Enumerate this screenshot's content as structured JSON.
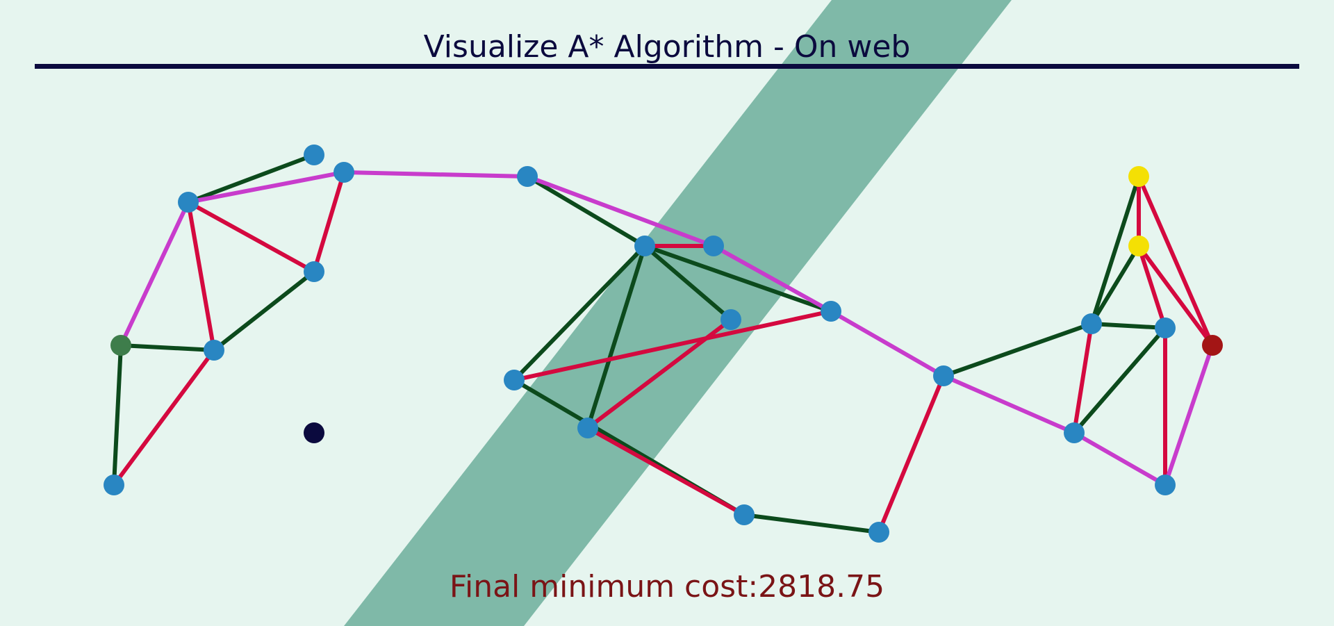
{
  "header": {
    "title": "Visualize A* Algorithm - On web"
  },
  "result": {
    "text": "Final minimum cost:2818.75"
  },
  "colors": {
    "background": "#e6f5ef",
    "obstacle": "#7fb9a8",
    "title": "#0b0a3e",
    "result_text": "#7a1416",
    "node_default": "#2986c2",
    "node_start": "#3e7d4b",
    "node_goal": "#a31515",
    "node_frontier": "#f4e004",
    "node_marker": "#0b0a3e",
    "edge_explored": "#0c4a1c",
    "edge_considered": "#d4093f",
    "edge_path": "#c83ccc"
  },
  "graph": {
    "nodes": [
      {
        "id": "n1",
        "state": "default"
      },
      {
        "id": "n2",
        "state": "default"
      },
      {
        "id": "n3",
        "state": "default"
      },
      {
        "id": "n4",
        "state": "default"
      },
      {
        "id": "n5",
        "state": "start"
      },
      {
        "id": "n6",
        "state": "default"
      },
      {
        "id": "n7",
        "state": "default"
      },
      {
        "id": "n8",
        "state": "default"
      },
      {
        "id": "n9",
        "state": "default"
      },
      {
        "id": "n10",
        "state": "default"
      },
      {
        "id": "n11",
        "state": "default"
      },
      {
        "id": "n12",
        "state": "default"
      },
      {
        "id": "n13",
        "state": "default"
      },
      {
        "id": "n14",
        "state": "default"
      },
      {
        "id": "n15",
        "state": "default"
      },
      {
        "id": "n16",
        "state": "default"
      },
      {
        "id": "n17",
        "state": "default"
      },
      {
        "id": "n18",
        "state": "frontier"
      },
      {
        "id": "n19",
        "state": "frontier"
      },
      {
        "id": "n20",
        "state": "default"
      },
      {
        "id": "n21",
        "state": "default"
      },
      {
        "id": "n22",
        "state": "goal"
      },
      {
        "id": "n23",
        "state": "default"
      },
      {
        "id": "n24",
        "state": "default"
      },
      {
        "id": "n25",
        "state": "marker"
      }
    ],
    "edges": [
      {
        "from": "n2",
        "to": "n1",
        "state": "explored"
      },
      {
        "from": "n2",
        "to": "n3",
        "state": "path"
      },
      {
        "from": "n2",
        "to": "n4",
        "state": "considered"
      },
      {
        "from": "n2",
        "to": "n6",
        "state": "considered"
      },
      {
        "from": "n2",
        "to": "n5",
        "state": "path"
      },
      {
        "from": "n3",
        "to": "n4",
        "state": "considered"
      },
      {
        "from": "n3",
        "to": "n8",
        "state": "path"
      },
      {
        "from": "n4",
        "to": "n6",
        "state": "explored"
      },
      {
        "from": "n5",
        "to": "n6",
        "state": "explored"
      },
      {
        "from": "n5",
        "to": "n7",
        "state": "explored"
      },
      {
        "from": "n6",
        "to": "n7",
        "state": "considered"
      },
      {
        "from": "n8",
        "to": "n9",
        "state": "explored"
      },
      {
        "from": "n8",
        "to": "n10",
        "state": "path"
      },
      {
        "from": "n9",
        "to": "n10",
        "state": "considered"
      },
      {
        "from": "n9",
        "to": "n11",
        "state": "explored"
      },
      {
        "from": "n9",
        "to": "n12",
        "state": "explored"
      },
      {
        "from": "n9",
        "to": "n13",
        "state": "explored"
      },
      {
        "from": "n9",
        "to": "n14",
        "state": "explored"
      },
      {
        "from": "n10",
        "to": "n12",
        "state": "path"
      },
      {
        "from": "n11",
        "to": "n12",
        "state": "considered"
      },
      {
        "from": "n11",
        "to": "n15",
        "state": "explored"
      },
      {
        "from": "n13",
        "to": "n14",
        "state": "considered"
      },
      {
        "from": "n14",
        "to": "n15",
        "state": "considered"
      },
      {
        "from": "n15",
        "to": "n16",
        "state": "explored"
      },
      {
        "from": "n16",
        "to": "n17",
        "state": "considered"
      },
      {
        "from": "n12",
        "to": "n17",
        "state": "path"
      },
      {
        "from": "n17",
        "to": "n20",
        "state": "explored"
      },
      {
        "from": "n17",
        "to": "n23",
        "state": "path"
      },
      {
        "from": "n18",
        "to": "n19",
        "state": "considered"
      },
      {
        "from": "n18",
        "to": "n20",
        "state": "explored"
      },
      {
        "from": "n18",
        "to": "n22",
        "state": "considered"
      },
      {
        "from": "n19",
        "to": "n20",
        "state": "explored"
      },
      {
        "from": "n19",
        "to": "n21",
        "state": "considered"
      },
      {
        "from": "n19",
        "to": "n22",
        "state": "considered"
      },
      {
        "from": "n20",
        "to": "n21",
        "state": "explored"
      },
      {
        "from": "n20",
        "to": "n23",
        "state": "considered"
      },
      {
        "from": "n21",
        "to": "n23",
        "state": "explored"
      },
      {
        "from": "n21",
        "to": "n24",
        "state": "considered"
      },
      {
        "from": "n22",
        "to": "n24",
        "state": "path"
      },
      {
        "from": "n23",
        "to": "n24",
        "state": "path"
      }
    ]
  }
}
